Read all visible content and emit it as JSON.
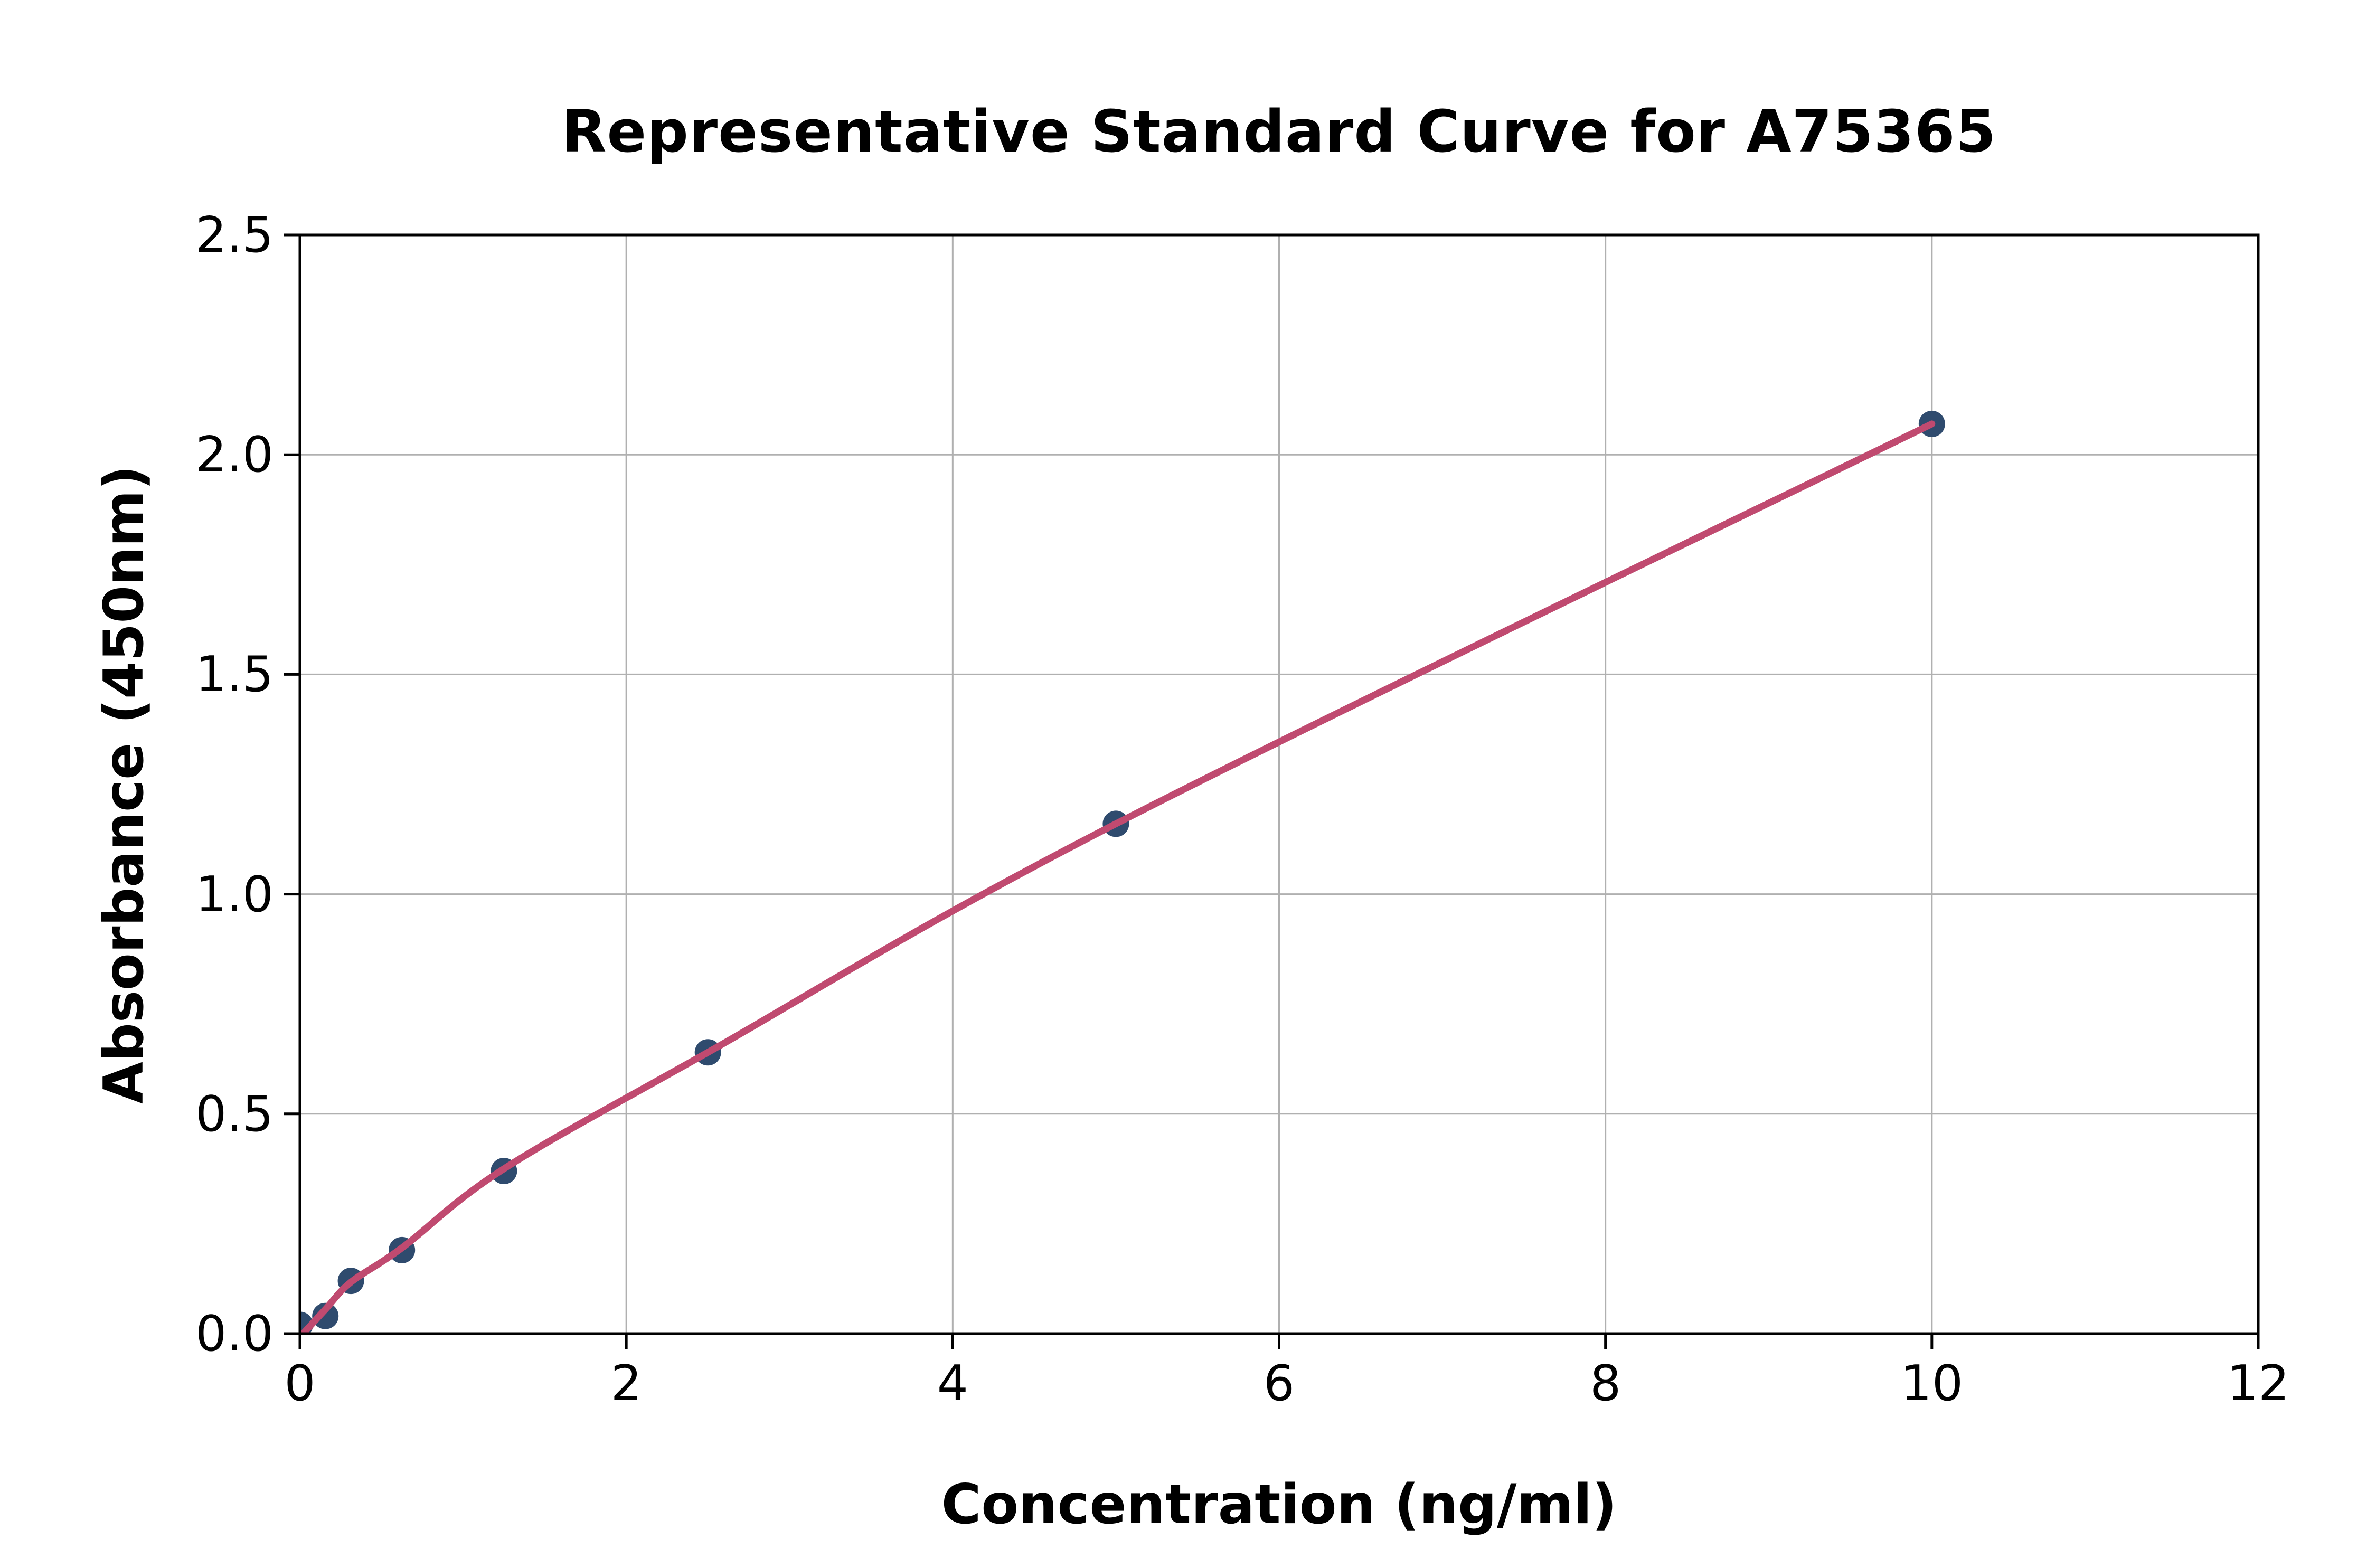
{
  "figure": {
    "background": "#ffffff"
  },
  "chart_data": {
    "type": "scatter",
    "title": "Representative Standard Curve for A75365",
    "xlabel": "Concentration (ng/ml)",
    "ylabel": "Absorbance (450nm)",
    "xlim": [
      0,
      12
    ],
    "ylim": [
      0,
      2.5
    ],
    "xticks": [
      0,
      2,
      4,
      6,
      8,
      10,
      12
    ],
    "xtick_labels": [
      "0",
      "2",
      "4",
      "6",
      "8",
      "10",
      "12"
    ],
    "yticks": [
      0,
      0.5,
      1,
      1.5,
      2,
      2.5
    ],
    "ytick_labels": [
      "0.0",
      "0.5",
      "1.0",
      "1.5",
      "2.0",
      "2.5"
    ],
    "grid": true,
    "legend_position": "none",
    "series": [
      {
        "name": "standard-points",
        "type": "scatter",
        "marker_color": "#2f4b6e",
        "points": [
          {
            "x": 0,
            "y": 0.02
          },
          {
            "x": 0.156,
            "y": 0.04
          },
          {
            "x": 0.3125,
            "y": 0.12
          },
          {
            "x": 0.625,
            "y": 0.19
          },
          {
            "x": 1.25,
            "y": 0.37
          },
          {
            "x": 2.5,
            "y": 0.64
          },
          {
            "x": 5,
            "y": 1.16
          },
          {
            "x": 10,
            "y": 2.07
          }
        ]
      },
      {
        "name": "fit-curve",
        "type": "line",
        "line_color": "#c04a70",
        "anchors": [
          {
            "x": 0.02,
            "y": 0.0
          },
          {
            "x": 0.156,
            "y": 0.055
          },
          {
            "x": 0.3125,
            "y": 0.117
          },
          {
            "x": 0.625,
            "y": 0.195
          },
          {
            "x": 1.25,
            "y": 0.375
          },
          {
            "x": 2.5,
            "y": 0.64
          },
          {
            "x": 5,
            "y": 1.16
          },
          {
            "x": 10,
            "y": 2.07
          }
        ]
      }
    ],
    "colors": {
      "grid": "#b0b0b0",
      "spine": "#000000",
      "text": "#000000",
      "background": "#ffffff"
    }
  }
}
